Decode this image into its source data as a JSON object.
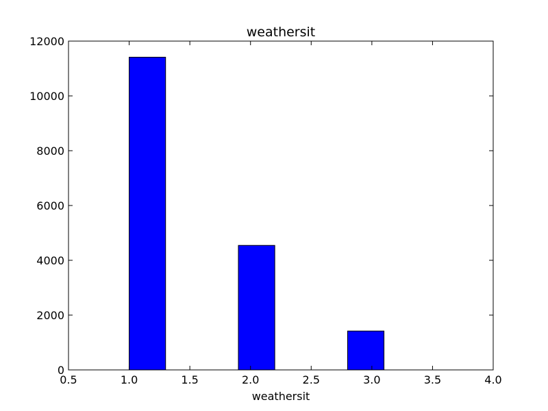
{
  "chart_data": {
    "type": "bar",
    "title": "weathersit",
    "xlabel": "weathersit",
    "ylabel": "",
    "xlim": [
      0.5,
      4.0
    ],
    "ylim": [
      0,
      12000
    ],
    "grid": false,
    "x_ticks": [
      0.5,
      1.0,
      1.5,
      2.0,
      2.5,
      3.0,
      3.5,
      4.0
    ],
    "x_tick_labels": [
      "0.5",
      "1.0",
      "1.5",
      "2.0",
      "2.5",
      "3.0",
      "3.5",
      "4.0"
    ],
    "y_ticks": [
      0,
      2000,
      4000,
      6000,
      8000,
      10000,
      12000
    ],
    "y_tick_labels": [
      "0",
      "2000",
      "4000",
      "6000",
      "8000",
      "10000",
      "12000"
    ],
    "bars": [
      {
        "x0": 1.0,
        "x1": 1.3,
        "value": 11413
      },
      {
        "x0": 1.9,
        "x1": 2.2,
        "value": 4544
      },
      {
        "x0": 2.8,
        "x1": 3.1,
        "value": 1419
      }
    ],
    "bar_color": "#0000ff",
    "edge_color": "#000000"
  }
}
